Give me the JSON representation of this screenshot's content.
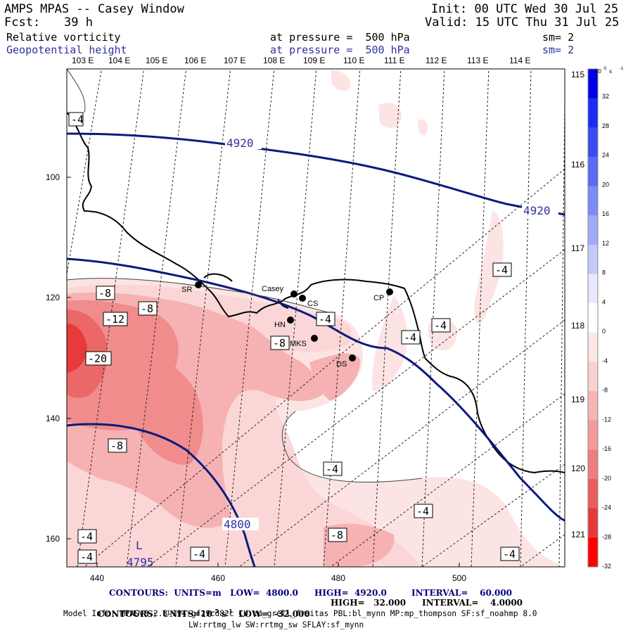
{
  "header": {
    "title": "AMPS MPAS -- Casey Window",
    "init": "Init: 00 UTC Wed 30 Jul 25",
    "fcst_label": "Fcst:",
    "fcst_value": "39 h",
    "valid": "Valid: 15 UTC Thu 31 Jul 25",
    "field1": "Relative vorticity",
    "field1_level": "at pressure =  500 hPa",
    "field1_sm": "sm= 2",
    "field2": "Geopotential height",
    "field2_level": "at pressure =  500 hPa",
    "field2_sm": "sm= 2"
  },
  "top_lon_labels": [
    "103 E",
    "104 E",
    "105 E",
    "106 E",
    "107 E",
    "108 E",
    "109 E",
    "110 E",
    "111 E",
    "112 E",
    "113 E",
    "114 E"
  ],
  "right_lon_labels": [
    "115 E",
    "116 E",
    "117 E",
    "118 E",
    "119 E",
    "120 E",
    "121 E"
  ],
  "x_ticks": [
    "440",
    "460",
    "480",
    "500"
  ],
  "y_ticks": [
    "100",
    "120",
    "140",
    "160"
  ],
  "stations": [
    "SR",
    "Casey",
    "CS",
    "CP",
    "HN",
    "MKS",
    "DS"
  ],
  "vorticity_labels": [
    "-4",
    "-8",
    "-12",
    "-20",
    "-8",
    "-4",
    "-8",
    "-4",
    "-4",
    "-8",
    "-4",
    "-4",
    "-4",
    "-8",
    "-4",
    "-4",
    "-4",
    "-4"
  ],
  "height_labels": [
    "4920",
    "4920",
    "4800"
  ],
  "low_marker": {
    "letter": "L",
    "value": "4795"
  },
  "colorbar": {
    "unit_base": "10",
    "unit_exp": "-5",
    "unit_tail": " s",
    "unit_exp2": "-1",
    "labels": [
      "32",
      "28",
      "24",
      "20",
      "16",
      "12",
      "8",
      "4",
      "0",
      "-4",
      "-8",
      "-12",
      "-16",
      "-20",
      "-24",
      "-28",
      "-32"
    ],
    "colors": [
      "#0000e8",
      "#1a2cf0",
      "#3a4cf0",
      "#5a6cf4",
      "#7c8cf6",
      "#a0aaf8",
      "#c4c8fa",
      "#e6e8fc",
      "#ffffff",
      "#fde6e6",
      "#fad0d0",
      "#f7b4b4",
      "#f49a9a",
      "#f07e7e",
      "#ec5e5e",
      "#e63a3a",
      "#ff0000"
    ]
  },
  "footer": {
    "line1_a": "CONTOURS:  UNITS=m   LOW=  4800.0",
    "line1_b": "HIGH=  4920.0",
    "line1_c": "INTERVAL=    60.000",
    "line2_a": "CONTOURS:  UNITS=10",
    "line2_exp": "-5",
    "line2_b": " s",
    "line2_exp2": "-1",
    "line2_c": "  LOW=  -32.000",
    "line2_d": "HIGH=   32.000",
    "line2_e": "INTERVAL=    4.0000",
    "line3": "Model Info: MPASv8.2.3-194-gf29cd82c CU:cu_grell_freitas PBL:bl_mynn MP:mp_thompson SF:sf_noahmp 8.0",
    "line4": "LW:rrtmg_lw SW:rrtmg_sw SFLAY:sf_mynn"
  }
}
